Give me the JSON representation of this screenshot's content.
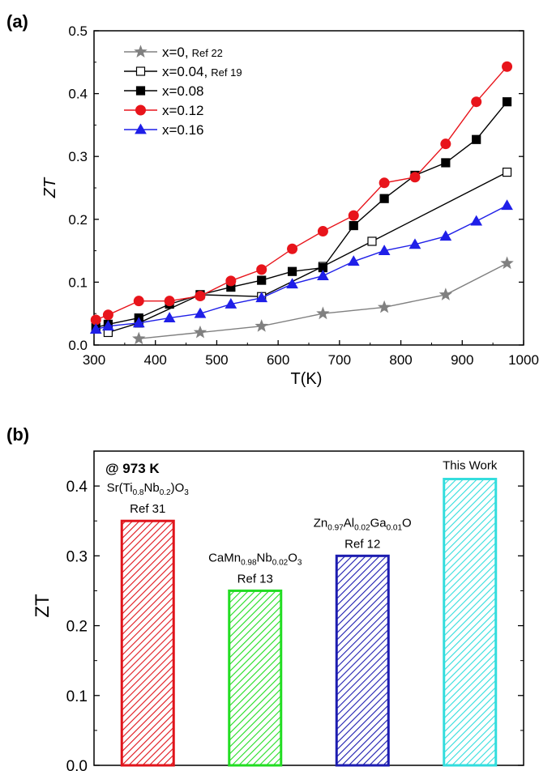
{
  "chart_data": [
    {
      "type": "line",
      "panel_label": "(a)",
      "xlabel": "T(K)",
      "ylabel": "ZT",
      "xlim": [
        300,
        1000
      ],
      "ylim": [
        0.0,
        0.5
      ],
      "xticks": [
        "300",
        "400",
        "500",
        "600",
        "700",
        "800",
        "900",
        "1000"
      ],
      "yticks": [
        "0.0",
        "0.1",
        "0.2",
        "0.3",
        "0.4",
        "0.5"
      ],
      "grid": false,
      "legend_position": "top-left",
      "series": [
        {
          "name": "x=0,",
          "ref": "Ref 22",
          "marker": "star",
          "filled": true,
          "color": "#808080",
          "x": [
            373,
            473,
            573,
            673,
            773,
            873,
            973
          ],
          "y": [
            0.01,
            0.02,
            0.03,
            0.05,
            0.06,
            0.08,
            0.13
          ]
        },
        {
          "name": "x=0.04,",
          "ref": "Ref 19",
          "marker": "square",
          "filled": false,
          "color": "#000000",
          "x": [
            323,
            373,
            473,
            573,
            673,
            753,
            973
          ],
          "y": [
            0.02,
            0.035,
            0.08,
            0.077,
            0.125,
            0.165,
            0.275
          ]
        },
        {
          "name": "x=0.08",
          "ref": "",
          "marker": "square",
          "filled": true,
          "color": "#000000",
          "x": [
            303,
            323,
            373,
            423,
            473,
            523,
            573,
            623,
            673,
            723,
            773,
            823,
            873,
            923,
            973
          ],
          "y": [
            0.028,
            0.033,
            0.043,
            0.065,
            0.08,
            0.092,
            0.103,
            0.117,
            0.123,
            0.19,
            0.233,
            0.27,
            0.29,
            0.327,
            0.387
          ]
        },
        {
          "name": "x=0.12",
          "ref": "",
          "marker": "circle",
          "filled": true,
          "color": "#e8141b",
          "x": [
            303,
            323,
            373,
            423,
            473,
            523,
            573,
            623,
            673,
            723,
            773,
            823,
            873,
            923,
            973
          ],
          "y": [
            0.04,
            0.048,
            0.07,
            0.07,
            0.078,
            0.102,
            0.12,
            0.153,
            0.181,
            0.206,
            0.258,
            0.267,
            0.32,
            0.387,
            0.443
          ]
        },
        {
          "name": "x=0.16",
          "ref": "",
          "marker": "triangle",
          "filled": true,
          "color": "#1f1fe8",
          "x": [
            303,
            323,
            373,
            423,
            473,
            523,
            573,
            623,
            673,
            723,
            773,
            823,
            873,
            923,
            973
          ],
          "y": [
            0.025,
            0.03,
            0.035,
            0.043,
            0.05,
            0.065,
            0.075,
            0.097,
            0.11,
            0.133,
            0.15,
            0.16,
            0.173,
            0.197,
            0.222
          ]
        }
      ]
    },
    {
      "type": "bar",
      "panel_label": "(b)",
      "annotation": "@ 973 K",
      "ylabel": "ZT",
      "ylim": [
        0.0,
        0.45
      ],
      "yticks": [
        "0.0",
        "0.1",
        "0.2",
        "0.3",
        "0.4"
      ],
      "grid": false,
      "categories": [
        {
          "formula": [
            [
              "Sr(Ti",
              "n"
            ],
            [
              "0.8",
              "s"
            ],
            [
              "Nb",
              "n"
            ],
            [
              "0.2",
              "s"
            ],
            [
              ")O",
              "n"
            ],
            [
              "3",
              "s"
            ]
          ],
          "ref": "Ref 31"
        },
        {
          "formula": [
            [
              "CaMn",
              "n"
            ],
            [
              "0.98",
              "s"
            ],
            [
              "Nb",
              "n"
            ],
            [
              "0.02",
              "s"
            ],
            [
              "O",
              "n"
            ],
            [
              "3",
              "s"
            ]
          ],
          "ref": "Ref 13"
        },
        {
          "formula": [
            [
              "Zn",
              "n"
            ],
            [
              "0.97",
              "s"
            ],
            [
              "Al",
              "n"
            ],
            [
              "0.02",
              "s"
            ],
            [
              "Ga",
              "n"
            ],
            [
              "0.01",
              "s"
            ],
            [
              "O",
              "n"
            ]
          ],
          "ref": "Ref 12"
        },
        {
          "formula": [
            [
              "This Work",
              "n"
            ]
          ],
          "ref": ""
        }
      ],
      "values": [
        0.35,
        0.25,
        0.3,
        0.41
      ],
      "colors": [
        "#e0141b",
        "#22dd22",
        "#1c1cb0",
        "#33dddd"
      ]
    }
  ]
}
